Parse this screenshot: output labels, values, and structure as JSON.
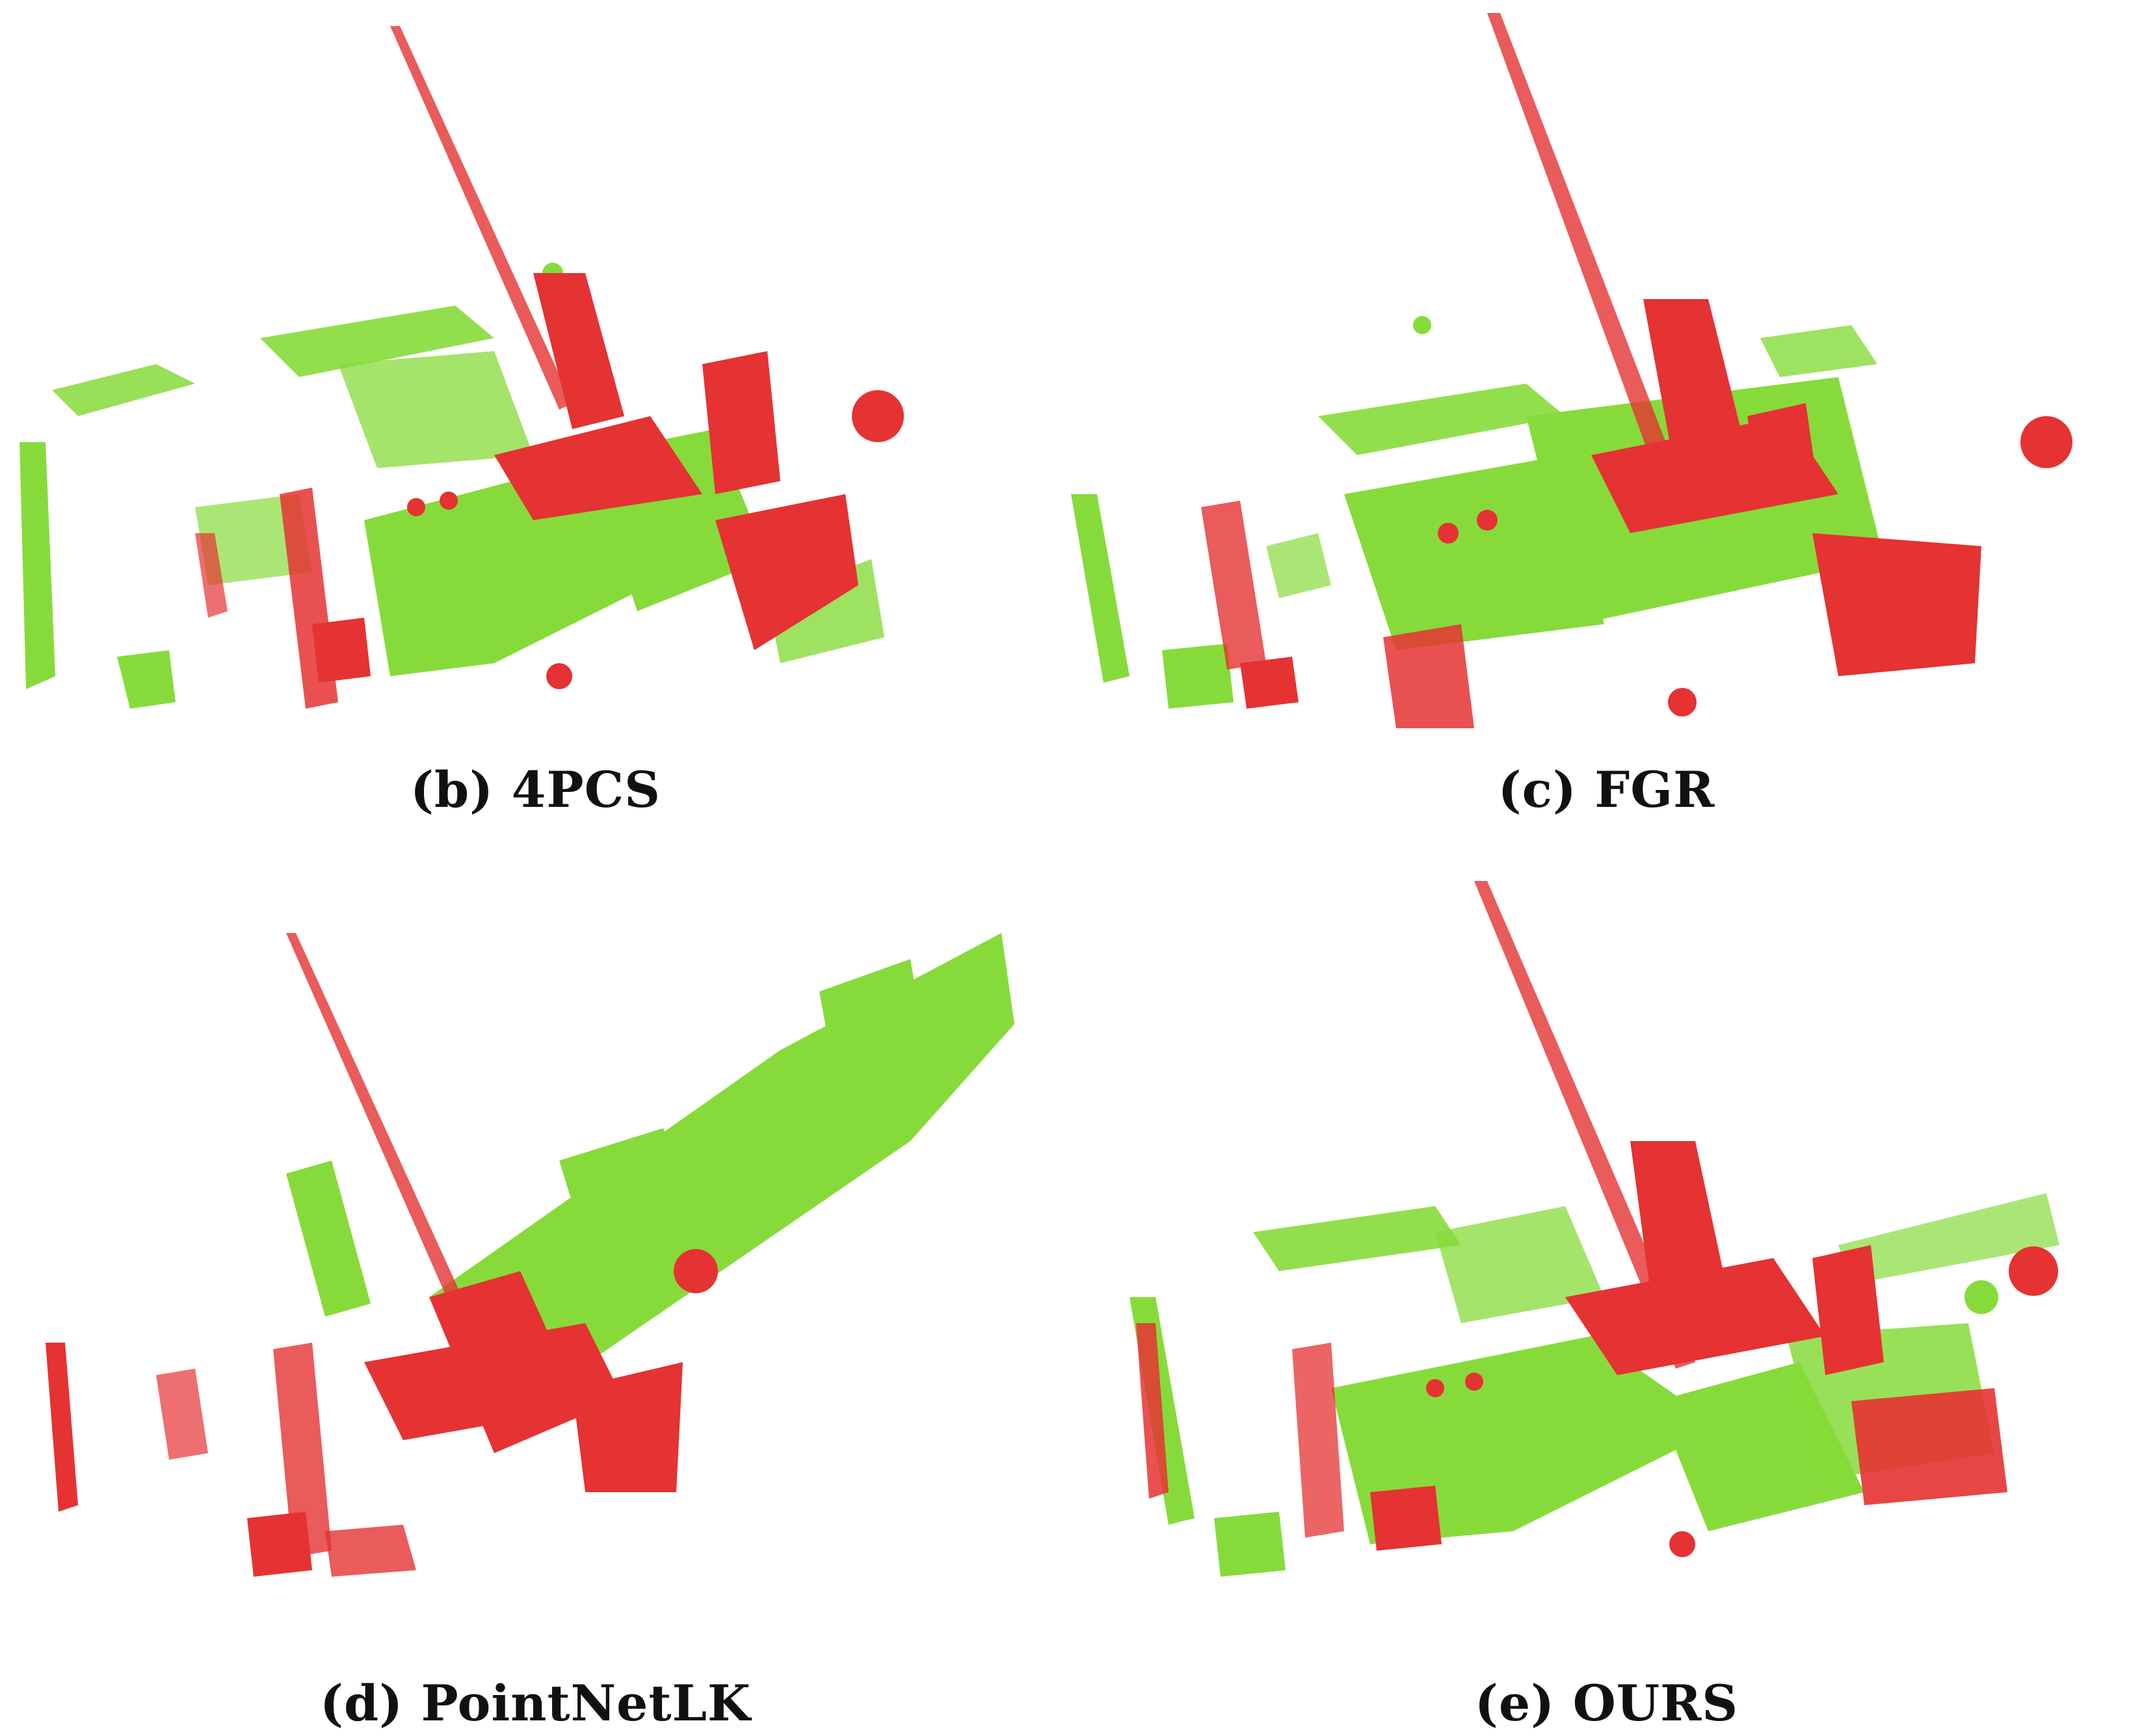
{
  "colors": {
    "source": "#e53232",
    "target": "#86db3a",
    "background": "#ffffff"
  },
  "panels": [
    {
      "id": "b",
      "caption": "(b) 4PCS"
    },
    {
      "id": "c",
      "caption": "(c) FGR"
    },
    {
      "id": "d",
      "caption": "(d) PointNetLK"
    },
    {
      "id": "e",
      "caption": "(e) OURS"
    }
  ]
}
